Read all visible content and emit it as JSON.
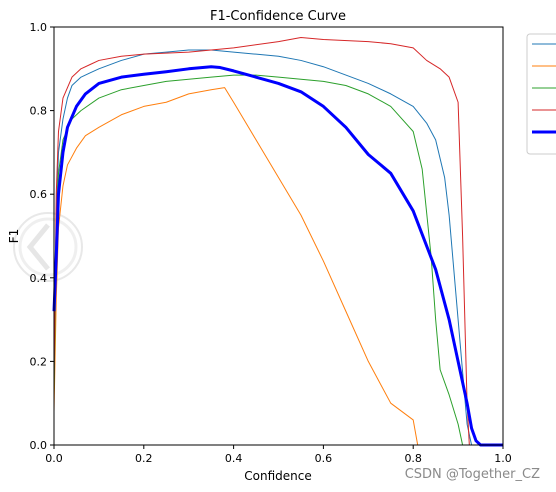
{
  "chart_data": {
    "type": "line",
    "title": "F1-Confidence Curve",
    "xlabel": "Confidence",
    "ylabel": "F1",
    "xlim": [
      0.0,
      1.0
    ],
    "ylim": [
      0.0,
      1.0
    ],
    "xticks": [
      "0.0",
      "0.2",
      "0.4",
      "0.6",
      "0.8",
      "1.0"
    ],
    "yticks": [
      "0.0",
      "0.2",
      "0.4",
      "0.6",
      "0.8",
      "1.0"
    ],
    "grid": false,
    "legend": "right, outside plot (entry labels not legible)",
    "series": [
      {
        "color": "#1f77b4",
        "width": 1,
        "x": [
          0.0,
          0.005,
          0.01,
          0.02,
          0.03,
          0.04,
          0.06,
          0.08,
          0.1,
          0.15,
          0.2,
          0.25,
          0.3,
          0.35,
          0.4,
          0.45,
          0.5,
          0.55,
          0.6,
          0.65,
          0.7,
          0.75,
          0.8,
          0.83,
          0.85,
          0.87,
          0.88,
          0.9,
          0.92,
          0.93
        ],
        "y": [
          0.15,
          0.55,
          0.7,
          0.78,
          0.83,
          0.86,
          0.88,
          0.89,
          0.9,
          0.92,
          0.935,
          0.94,
          0.945,
          0.945,
          0.94,
          0.935,
          0.93,
          0.92,
          0.905,
          0.885,
          0.865,
          0.84,
          0.81,
          0.77,
          0.73,
          0.64,
          0.55,
          0.3,
          0.05,
          0.0
        ]
      },
      {
        "color": "#ff7f0e",
        "width": 1,
        "x": [
          0.0,
          0.005,
          0.01,
          0.02,
          0.03,
          0.05,
          0.07,
          0.1,
          0.15,
          0.2,
          0.25,
          0.3,
          0.35,
          0.38,
          0.4,
          0.45,
          0.5,
          0.55,
          0.6,
          0.65,
          0.7,
          0.75,
          0.8,
          0.81
        ],
        "y": [
          0.08,
          0.35,
          0.52,
          0.62,
          0.67,
          0.71,
          0.74,
          0.76,
          0.79,
          0.81,
          0.82,
          0.84,
          0.85,
          0.855,
          0.82,
          0.73,
          0.64,
          0.55,
          0.44,
          0.32,
          0.2,
          0.1,
          0.06,
          0.0
        ]
      },
      {
        "color": "#2ca02c",
        "width": 1,
        "x": [
          0.0,
          0.005,
          0.01,
          0.02,
          0.04,
          0.06,
          0.1,
          0.15,
          0.2,
          0.25,
          0.3,
          0.35,
          0.4,
          0.45,
          0.5,
          0.55,
          0.6,
          0.65,
          0.7,
          0.75,
          0.8,
          0.82,
          0.84,
          0.85,
          0.86,
          0.88,
          0.9,
          0.91
        ],
        "y": [
          0.12,
          0.5,
          0.65,
          0.73,
          0.78,
          0.8,
          0.83,
          0.85,
          0.86,
          0.87,
          0.875,
          0.88,
          0.885,
          0.885,
          0.88,
          0.875,
          0.87,
          0.86,
          0.84,
          0.81,
          0.75,
          0.66,
          0.45,
          0.3,
          0.18,
          0.12,
          0.05,
          0.0
        ]
      },
      {
        "color": "#d62728",
        "width": 1,
        "x": [
          0.0,
          0.005,
          0.01,
          0.02,
          0.04,
          0.06,
          0.08,
          0.1,
          0.15,
          0.2,
          0.3,
          0.4,
          0.5,
          0.55,
          0.6,
          0.7,
          0.75,
          0.8,
          0.83,
          0.86,
          0.88,
          0.9,
          0.91,
          0.92,
          0.925
        ],
        "y": [
          0.15,
          0.6,
          0.75,
          0.83,
          0.88,
          0.9,
          0.91,
          0.92,
          0.93,
          0.935,
          0.94,
          0.95,
          0.965,
          0.975,
          0.97,
          0.965,
          0.96,
          0.95,
          0.92,
          0.9,
          0.88,
          0.82,
          0.5,
          0.1,
          0.0
        ]
      },
      {
        "color": "#0000ff",
        "width": 3,
        "x": [
          0.0,
          0.005,
          0.01,
          0.02,
          0.03,
          0.05,
          0.07,
          0.1,
          0.15,
          0.2,
          0.25,
          0.3,
          0.35,
          0.37,
          0.4,
          0.45,
          0.5,
          0.55,
          0.6,
          0.65,
          0.7,
          0.75,
          0.8,
          0.85,
          0.88,
          0.9,
          0.92,
          0.93,
          0.94,
          0.95,
          0.96,
          1.0
        ],
        "y": [
          0.32,
          0.45,
          0.6,
          0.7,
          0.76,
          0.81,
          0.84,
          0.865,
          0.88,
          0.887,
          0.893,
          0.9,
          0.905,
          0.903,
          0.895,
          0.88,
          0.865,
          0.845,
          0.81,
          0.76,
          0.695,
          0.65,
          0.56,
          0.42,
          0.3,
          0.2,
          0.1,
          0.04,
          0.01,
          0.0,
          0.0,
          0.0
        ]
      }
    ]
  },
  "watermark": {
    "text": "CSDN @Together_CZ",
    "color": "#8a8a8a"
  }
}
